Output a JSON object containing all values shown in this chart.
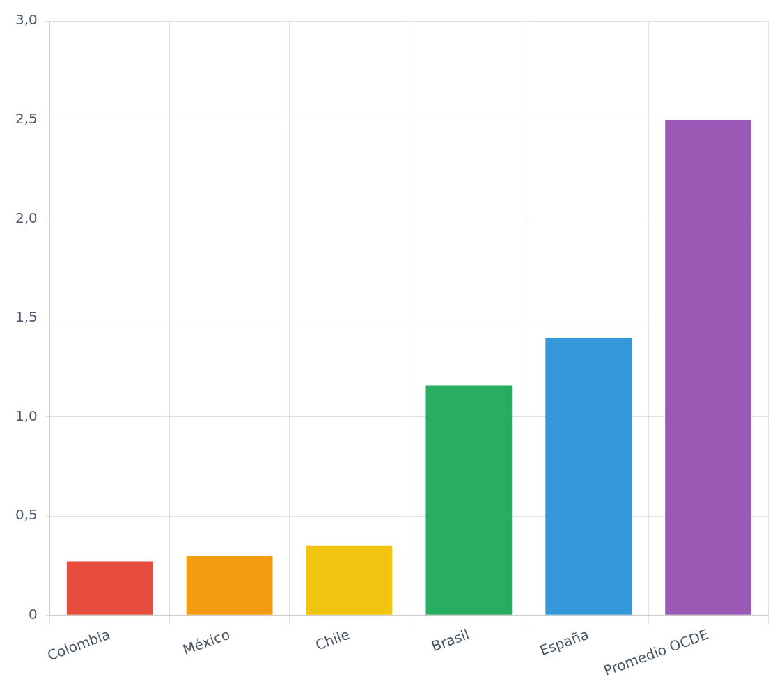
{
  "chart_data": {
    "type": "bar",
    "categories": [
      "Colombia",
      "México",
      "Chile",
      "Brasil",
      "España",
      "Promedio OCDE"
    ],
    "values": [
      0.27,
      0.3,
      0.35,
      1.16,
      1.4,
      2.5
    ],
    "colors": [
      "#e74c3c",
      "#f39c12",
      "#f1c40f",
      "#27ae60",
      "#3498db",
      "#9b59b6"
    ],
    "ylim": [
      0,
      3
    ],
    "yticks": [
      0,
      {
        "value": 0.5,
        "label": "0,5"
      },
      {
        "value": 1,
        "label": "1,0"
      },
      {
        "value": 1.5,
        "label": "1,5"
      },
      {
        "value": 2,
        "label": "2,0"
      },
      {
        "value": 2.5,
        "label": "2,5"
      },
      {
        "value": 3,
        "label": "3,0"
      }
    ],
    "grid": true,
    "legend": false
  }
}
